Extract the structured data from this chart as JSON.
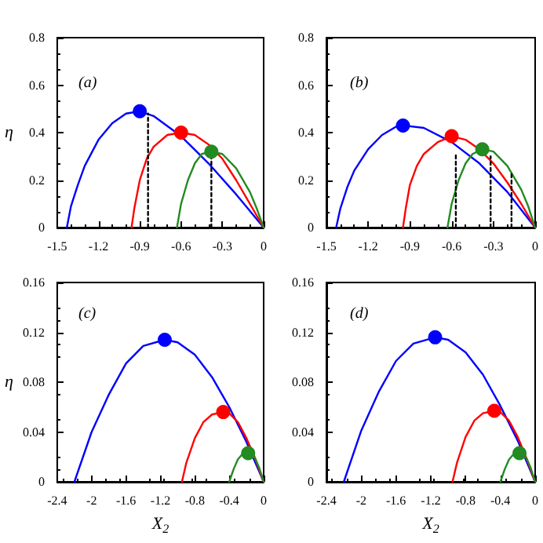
{
  "chart_data": [
    {
      "type": "line",
      "ylabel": "η",
      "annotations": [
        "(a)"
      ],
      "xlim": [
        -1.5,
        0
      ],
      "ylim": [
        0,
        0.8
      ],
      "xticks": [
        -1.5,
        -1.2,
        -0.9,
        -0.6,
        -0.3,
        0
      ],
      "yticks": [
        0,
        0.2,
        0.4,
        0.6,
        0.8
      ],
      "grid": false,
      "marker": "none",
      "series": [
        {
          "color": "#0000ff",
          "x": [
            -1.43,
            -1.4,
            -1.35,
            -1.3,
            -1.2,
            -1.1,
            -1.0,
            -0.9,
            -0.8,
            -0.6,
            -0.4,
            -0.2,
            0
          ],
          "values": [
            0,
            0.09,
            0.18,
            0.26,
            0.37,
            0.44,
            0.48,
            0.49,
            0.47,
            0.385,
            0.27,
            0.14,
            0
          ]
        },
        {
          "color": "#ff0000",
          "x": [
            -0.96,
            -0.94,
            -0.9,
            -0.85,
            -0.8,
            -0.7,
            -0.6,
            -0.5,
            -0.4,
            -0.3,
            -0.2,
            -0.1,
            0
          ],
          "values": [
            0,
            0.08,
            0.2,
            0.29,
            0.34,
            0.39,
            0.4,
            0.39,
            0.35,
            0.29,
            0.2,
            0.1,
            0
          ]
        },
        {
          "color": "#228b22",
          "x": [
            -0.63,
            -0.6,
            -0.55,
            -0.5,
            -0.45,
            -0.38,
            -0.3,
            -0.2,
            -0.1,
            -0.05,
            0
          ],
          "values": [
            0,
            0.1,
            0.2,
            0.27,
            0.31,
            0.32,
            0.31,
            0.25,
            0.15,
            0.08,
            0
          ]
        },
        {
          "color": "#000000",
          "line_style": "dotted",
          "x": [
            -0.84,
            -0.84
          ],
          "values": [
            0,
            0.48
          ]
        },
        {
          "color": "#000000",
          "line_style": "dotted",
          "x": [
            -0.38,
            -0.38
          ],
          "values": [
            0,
            0.32
          ]
        },
        {
          "type": "scatter",
          "marker": "circle",
          "color": "#0000ff",
          "x": [
            -0.9
          ],
          "values": [
            0.49
          ]
        },
        {
          "type": "scatter",
          "marker": "circle",
          "color": "#ff0000",
          "x": [
            -0.6
          ],
          "values": [
            0.4
          ]
        },
        {
          "type": "scatter",
          "marker": "circle",
          "color": "#228b22",
          "x": [
            -0.38
          ],
          "values": [
            0.32
          ]
        }
      ]
    },
    {
      "type": "line",
      "annotations": [
        "(b)"
      ],
      "xlim": [
        -1.5,
        0
      ],
      "ylim": [
        0,
        0.8
      ],
      "xticks": [
        -1.5,
        -1.2,
        -0.9,
        -0.6,
        -0.3,
        0
      ],
      "yticks": [
        0,
        0.2,
        0.4,
        0.6,
        0.8
      ],
      "grid": false,
      "marker": "none",
      "series": [
        {
          "color": "#0000ff",
          "x": [
            -1.43,
            -1.4,
            -1.35,
            -1.3,
            -1.2,
            -1.1,
            -1.0,
            -0.95,
            -0.8,
            -0.6,
            -0.4,
            -0.2,
            0
          ],
          "values": [
            0,
            0.08,
            0.17,
            0.24,
            0.33,
            0.39,
            0.425,
            0.43,
            0.42,
            0.36,
            0.27,
            0.15,
            0
          ]
        },
        {
          "color": "#ff0000",
          "x": [
            -0.95,
            -0.93,
            -0.9,
            -0.85,
            -0.8,
            -0.7,
            -0.6,
            -0.5,
            -0.4,
            -0.3,
            -0.2,
            -0.1,
            0
          ],
          "values": [
            0,
            0.08,
            0.18,
            0.26,
            0.31,
            0.36,
            0.385,
            0.37,
            0.33,
            0.27,
            0.19,
            0.1,
            0
          ]
        },
        {
          "color": "#228b22",
          "x": [
            -0.63,
            -0.6,
            -0.55,
            -0.5,
            -0.45,
            -0.38,
            -0.3,
            -0.2,
            -0.1,
            -0.05,
            0
          ],
          "values": [
            0,
            0.1,
            0.2,
            0.27,
            0.31,
            0.33,
            0.32,
            0.26,
            0.16,
            0.09,
            0
          ]
        },
        {
          "color": "#000000",
          "line_style": "dotted",
          "x": [
            -0.57,
            -0.57
          ],
          "values": [
            0,
            0.31
          ]
        },
        {
          "color": "#000000",
          "line_style": "dotted",
          "x": [
            -0.32,
            -0.32
          ],
          "values": [
            0,
            0.3
          ]
        },
        {
          "color": "#000000",
          "line_style": "dotted",
          "x": [
            -0.17,
            -0.17
          ],
          "values": [
            0,
            0.23
          ]
        },
        {
          "type": "scatter",
          "marker": "circle",
          "color": "#0000ff",
          "x": [
            -0.95
          ],
          "values": [
            0.43
          ]
        },
        {
          "type": "scatter",
          "marker": "circle",
          "color": "#ff0000",
          "x": [
            -0.6
          ],
          "values": [
            0.385
          ]
        },
        {
          "type": "scatter",
          "marker": "circle",
          "color": "#228b22",
          "x": [
            -0.38
          ],
          "values": [
            0.33
          ]
        }
      ]
    },
    {
      "type": "line",
      "ylabel": "η",
      "xlabel": "X$_{2}$",
      "annotations": [
        "(c)"
      ],
      "xlim": [
        -2.4,
        0
      ],
      "ylim": [
        0,
        0.16
      ],
      "xticks": [
        -2.4,
        -2,
        -1.6,
        -1.2,
        -0.8,
        -0.4,
        0
      ],
      "yticks": [
        0,
        0.04,
        0.08,
        0.12,
        0.16
      ],
      "grid": false,
      "marker": "none",
      "series": [
        {
          "color": "#0000ff",
          "x": [
            -2.2,
            -2.0,
            -1.8,
            -1.6,
            -1.4,
            -1.15,
            -1.0,
            -0.8,
            -0.6,
            -0.4,
            -0.2,
            0
          ],
          "values": [
            0,
            0.04,
            0.07,
            0.095,
            0.109,
            0.114,
            0.112,
            0.102,
            0.084,
            0.06,
            0.032,
            0
          ]
        },
        {
          "color": "#ff0000",
          "x": [
            -0.95,
            -0.9,
            -0.8,
            -0.7,
            -0.6,
            -0.47,
            -0.4,
            -0.3,
            -0.2,
            -0.1,
            0
          ],
          "values": [
            0,
            0.015,
            0.035,
            0.048,
            0.054,
            0.056,
            0.055,
            0.048,
            0.035,
            0.019,
            0
          ]
        },
        {
          "color": "#228b22",
          "x": [
            -0.4,
            -0.35,
            -0.3,
            -0.25,
            -0.18,
            -0.1,
            -0.05,
            0
          ],
          "values": [
            0,
            0.01,
            0.018,
            0.022,
            0.023,
            0.019,
            0.011,
            0
          ]
        },
        {
          "type": "scatter",
          "marker": "circle",
          "color": "#0000ff",
          "x": [
            -1.15
          ],
          "values": [
            0.114
          ]
        },
        {
          "type": "scatter",
          "marker": "circle",
          "color": "#ff0000",
          "x": [
            -0.47
          ],
          "values": [
            0.056
          ]
        },
        {
          "type": "scatter",
          "marker": "circle",
          "color": "#228b22",
          "x": [
            -0.18
          ],
          "values": [
            0.023
          ]
        }
      ]
    },
    {
      "type": "line",
      "xlabel": "X$_{2}$",
      "annotations": [
        "(d)"
      ],
      "xlim": [
        -2.4,
        0
      ],
      "ylim": [
        0,
        0.16
      ],
      "xticks": [
        -2.4,
        -2,
        -1.6,
        -1.2,
        -0.8,
        -0.4,
        0
      ],
      "yticks": [
        0,
        0.04,
        0.08,
        0.12,
        0.16
      ],
      "grid": false,
      "marker": "none",
      "series": [
        {
          "color": "#0000ff",
          "x": [
            -2.2,
            -2.0,
            -1.8,
            -1.6,
            -1.4,
            -1.15,
            -1.0,
            -0.8,
            -0.6,
            -0.4,
            -0.2,
            0
          ],
          "values": [
            0,
            0.041,
            0.072,
            0.097,
            0.111,
            0.116,
            0.114,
            0.104,
            0.086,
            0.061,
            0.033,
            0
          ]
        },
        {
          "color": "#ff0000",
          "x": [
            -0.95,
            -0.9,
            -0.8,
            -0.7,
            -0.6,
            -0.47,
            -0.4,
            -0.3,
            -0.2,
            -0.1,
            0
          ],
          "values": [
            0,
            0.015,
            0.036,
            0.049,
            0.055,
            0.057,
            0.056,
            0.049,
            0.036,
            0.019,
            0
          ]
        },
        {
          "color": "#228b22",
          "x": [
            -0.4,
            -0.35,
            -0.3,
            -0.25,
            -0.18,
            -0.1,
            -0.05,
            0
          ],
          "values": [
            0,
            0.01,
            0.018,
            0.022,
            0.023,
            0.019,
            0.011,
            0
          ]
        },
        {
          "type": "scatter",
          "marker": "circle",
          "color": "#0000ff",
          "x": [
            -1.15
          ],
          "values": [
            0.116
          ]
        },
        {
          "type": "scatter",
          "marker": "circle",
          "color": "#ff0000",
          "x": [
            -0.47
          ],
          "values": [
            0.057
          ]
        },
        {
          "type": "scatter",
          "marker": "circle",
          "color": "#228b22",
          "x": [
            -0.18
          ],
          "values": [
            0.023
          ]
        }
      ]
    }
  ]
}
